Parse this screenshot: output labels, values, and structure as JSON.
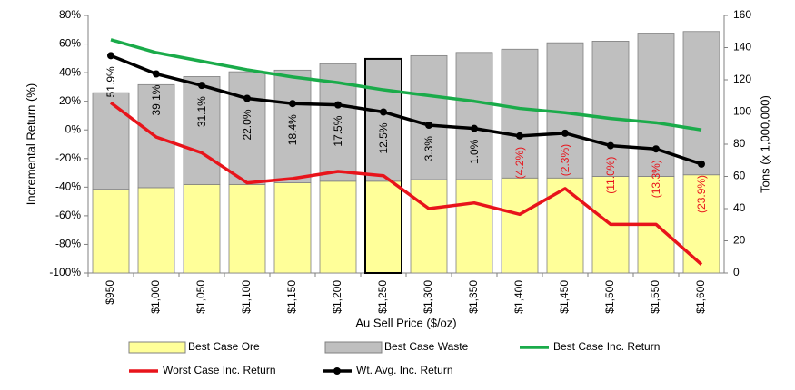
{
  "chart_data": {
    "type": "bar",
    "categories": [
      "$950",
      "$1,000",
      "$1,050",
      "$1,100",
      "$1,150",
      "$1,200",
      "$1,250",
      "$1,300",
      "$1,350",
      "$1,400",
      "$1,450",
      "$1,500",
      "$1,550",
      "$1,600"
    ],
    "x_label": "Au Sell Price ($/oz)",
    "y_label": "Incremental Return (%)",
    "y2_label": "Tons (x 1,000,000)",
    "ylim": [
      -100,
      80
    ],
    "yticks": [
      {
        "value": -100,
        "label": "-100%"
      },
      {
        "value": -80,
        "label": "-80%"
      },
      {
        "value": -60,
        "label": "-60%"
      },
      {
        "value": -40,
        "label": "-40%"
      },
      {
        "value": -20,
        "label": "-20%"
      },
      {
        "value": 0,
        "label": "0%"
      },
      {
        "value": 20,
        "label": "20%"
      },
      {
        "value": 40,
        "label": "40%"
      },
      {
        "value": 60,
        "label": "60%"
      },
      {
        "value": 80,
        "label": "80%"
      }
    ],
    "y2lim": [
      0,
      160
    ],
    "y2ticks": [
      0,
      20,
      40,
      60,
      80,
      100,
      120,
      140,
      160
    ],
    "stacked": true,
    "series": [
      {
        "name": "Best Case Ore",
        "type": "bar",
        "axis": "y2",
        "color": "#ffff99",
        "values": [
          52,
          53,
          55,
          55,
          56,
          57,
          57,
          58,
          58,
          59,
          59,
          60,
          60,
          61
        ]
      },
      {
        "name": "Best Case Waste",
        "type": "bar",
        "axis": "y2",
        "color": "#bfbfbf",
        "values": [
          60,
          64,
          67,
          70,
          70,
          73,
          76,
          77,
          79,
          80,
          84,
          84,
          89,
          89
        ]
      },
      {
        "name": "Best Case Inc. Return",
        "type": "line",
        "color": "#1aab4a",
        "values": [
          63,
          54,
          48,
          42,
          37,
          33,
          28,
          24,
          20,
          15,
          12,
          8,
          5,
          0
        ]
      },
      {
        "name": "Worst Case Inc. Return",
        "type": "line",
        "color": "#e8141b",
        "values": [
          19,
          -5,
          -16,
          -37,
          -34,
          -29,
          -32,
          -55,
          -51,
          -59,
          -41,
          -66,
          -66,
          -94
        ]
      },
      {
        "name": "Wt. Avg. Inc. Return",
        "type": "line",
        "color": "#000000",
        "markers": true,
        "values": [
          51.9,
          39.1,
          31.1,
          22.0,
          18.4,
          17.5,
          12.5,
          3.3,
          1.0,
          -4.2,
          -2.3,
          -11.0,
          -13.3,
          -23.9
        ],
        "value_labels": [
          "51.9%",
          "39.1%",
          "31.1%",
          "22.0%",
          "18.4%",
          "17.5%",
          "12.5%",
          "3.3%",
          "1.0%",
          "(4.2%)",
          "(2.3%)",
          "(11.0%)",
          "(13.3%)",
          "(23.9%)"
        ]
      }
    ]
  }
}
